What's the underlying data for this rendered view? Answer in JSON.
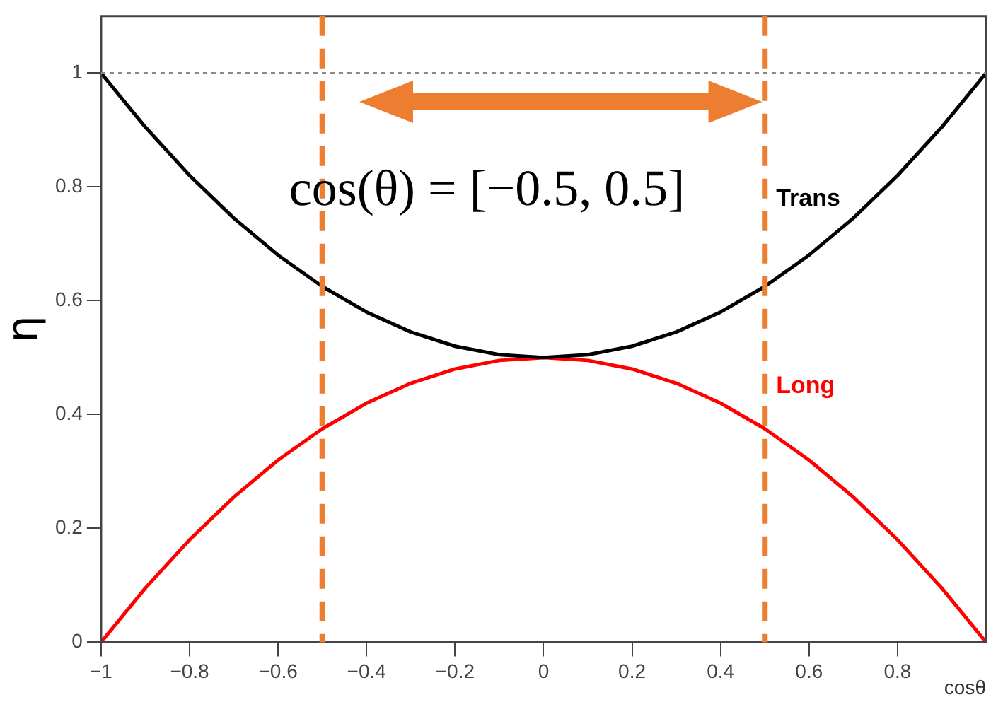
{
  "chart_data": {
    "type": "line",
    "xlabel": "cosθ",
    "ylabel": "η",
    "x": [
      -1,
      -0.9,
      -0.8,
      -0.7,
      -0.6,
      -0.5,
      -0.4,
      -0.3,
      -0.2,
      -0.1,
      0,
      0.1,
      0.2,
      0.3,
      0.4,
      0.5,
      0.6,
      0.7,
      0.8,
      0.9,
      1
    ],
    "series": [
      {
        "name": "Trans",
        "color": "#000000",
        "values": [
          1,
          0.905,
          0.82,
          0.745,
          0.68,
          0.625,
          0.58,
          0.545,
          0.52,
          0.505,
          0.5,
          0.505,
          0.52,
          0.545,
          0.58,
          0.625,
          0.68,
          0.745,
          0.82,
          0.905,
          1
        ]
      },
      {
        "name": "Long",
        "color": "#ff0000",
        "values": [
          0,
          0.095,
          0.18,
          0.255,
          0.32,
          0.375,
          0.42,
          0.455,
          0.48,
          0.495,
          0.5,
          0.495,
          0.48,
          0.455,
          0.42,
          0.375,
          0.32,
          0.255,
          0.18,
          0.095,
          0
        ]
      }
    ],
    "xlim": [
      -1,
      1
    ],
    "ylim": [
      0,
      1.1
    ],
    "xticks": [
      {
        "value": -1,
        "label": "−1"
      },
      {
        "value": -0.8,
        "label": "−0.8"
      },
      {
        "value": -0.6,
        "label": "−0.6"
      },
      {
        "value": -0.4,
        "label": "−0.4"
      },
      {
        "value": -0.2,
        "label": "−0.2"
      },
      0,
      0.2,
      0.4,
      0.6,
      0.8
    ],
    "yticks": [
      0,
      0.2,
      0.4,
      0.6,
      0.8,
      1
    ],
    "ref_lines": [
      {
        "axis": "y",
        "value": 1,
        "color": "#888888",
        "line_style": "dotted"
      },
      {
        "axis": "x",
        "value": -0.5,
        "color": "#ed7d31",
        "line_style": "dashed"
      },
      {
        "axis": "x",
        "value": 0.5,
        "color": "#ed7d31",
        "line_style": "dashed"
      }
    ],
    "annotations": [
      "cos(θ) = [−0.5, 0.5]"
    ],
    "grid": false,
    "legend": false,
    "marker": "none",
    "line_style": "solid"
  }
}
